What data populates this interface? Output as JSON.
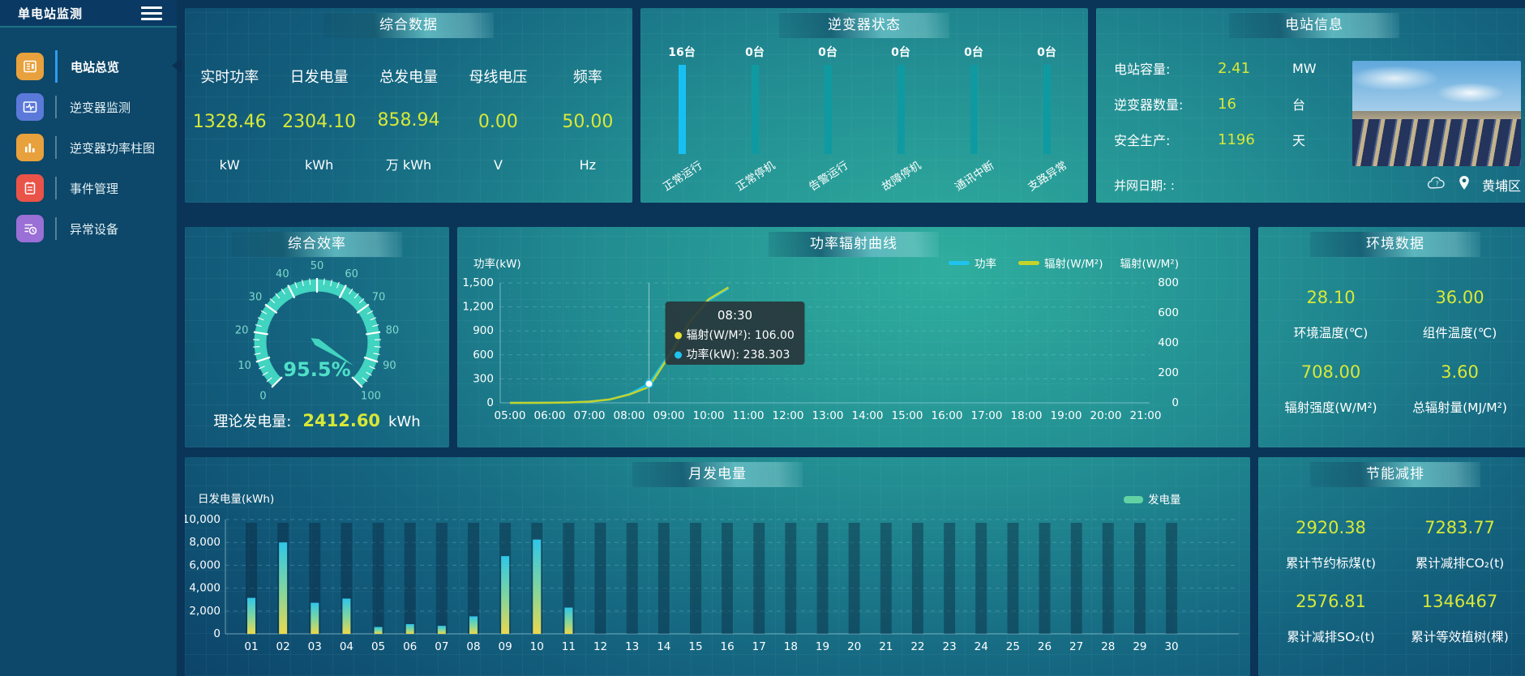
{
  "header": {
    "title": "单电站监测"
  },
  "sidebar": {
    "items": [
      {
        "label": "电站总览",
        "icon": "overview-doc-icon",
        "icon_color": "#e8a13c",
        "active": true
      },
      {
        "label": "逆变器监测",
        "icon": "inverter-monitor-icon",
        "icon_color": "#5b79d9",
        "active": false
      },
      {
        "label": "逆变器功率柱图",
        "icon": "power-bars-icon",
        "icon_color": "#e8a13c",
        "active": false
      },
      {
        "label": "事件管理",
        "icon": "event-notebook-icon",
        "icon_color": "#ea5348",
        "active": false
      },
      {
        "label": "异常设备",
        "icon": "abnormal-device-icon",
        "icon_color": "#9a6fd6",
        "active": false
      }
    ]
  },
  "panels": {
    "overview": {
      "title": "综合数据",
      "metrics": [
        {
          "label": "实时功率",
          "value": "1328.46",
          "unit": "kW"
        },
        {
          "label": "日发电量",
          "value": "2304.10",
          "unit": "kWh"
        },
        {
          "label": "总发电量",
          "value": "858.94",
          "unit": "万 kWh"
        },
        {
          "label": "母线电压",
          "value": "0.00",
          "unit": "V"
        },
        {
          "label": "频率",
          "value": "50.00",
          "unit": "Hz"
        }
      ]
    },
    "inverter_status": {
      "title": "逆变器状态",
      "items": [
        {
          "count": "16台",
          "label": "正常运行",
          "highlight": true
        },
        {
          "count": "0台",
          "label": "正常停机",
          "highlight": false
        },
        {
          "count": "0台",
          "label": "告警运行",
          "highlight": false
        },
        {
          "count": "0台",
          "label": "故障停机",
          "highlight": false
        },
        {
          "count": "0台",
          "label": "通讯中断",
          "highlight": false
        },
        {
          "count": "0台",
          "label": "支路异常",
          "highlight": false
        }
      ]
    },
    "station_info": {
      "title": "电站信息",
      "rows": [
        {
          "label": "电站容量:",
          "value": "2.41",
          "unit": "MW"
        },
        {
          "label": "逆变器数量:",
          "value": "16",
          "unit": "台"
        },
        {
          "label": "安全生产:",
          "value": "1196",
          "unit": "天"
        },
        {
          "label": "并网日期: :",
          "value": "",
          "unit": ""
        }
      ],
      "location": "黄埔区"
    },
    "efficiency": {
      "title": "综合效率",
      "value": 95.5,
      "value_text": "95.5%",
      "min": 0,
      "max": 100,
      "tick_labels": [
        0,
        10,
        20,
        30,
        40,
        50,
        60,
        70,
        80,
        90,
        100
      ],
      "theory": {
        "label": "理论发电量:",
        "value": "2412.60",
        "unit": "kWh"
      }
    },
    "environment": {
      "title": "环境数据",
      "metrics": [
        {
          "value": "28.10",
          "label": "环境温度(℃)"
        },
        {
          "value": "36.00",
          "label": "组件温度(℃)"
        },
        {
          "value": "708.00",
          "label": "辐射强度(W/M²)"
        },
        {
          "value": "3.60",
          "label": "总辐射量(MJ/M²)"
        }
      ]
    },
    "saving": {
      "title": "节能减排",
      "metrics": [
        {
          "value": "2920.38",
          "label": "累计节约标煤(t)"
        },
        {
          "value": "7283.77",
          "label": "累计减排CO₂(t)"
        },
        {
          "value": "2576.81",
          "label": "累计减排SO₂(t)"
        },
        {
          "value": "1346467",
          "label": "累计等效植树(棵)"
        }
      ]
    }
  },
  "chart_data": [
    {
      "type": "line",
      "title": "功率辐射曲线",
      "x_axis_labels": [
        "05:00",
        "06:00",
        "07:00",
        "08:00",
        "09:00",
        "10:00",
        "11:00",
        "12:00",
        "13:00",
        "14:00",
        "15:00",
        "16:00",
        "17:00",
        "18:00",
        "19:00",
        "20:00",
        "21:00"
      ],
      "x": [
        "05:00",
        "05:30",
        "06:00",
        "06:30",
        "07:00",
        "07:30",
        "08:00",
        "08:30",
        "09:00",
        "09:30",
        "10:00",
        "10:30"
      ],
      "series": [
        {
          "name": "功率",
          "color": "#1fc3ee",
          "axis": "left",
          "values": [
            0,
            0,
            2,
            5,
            15,
            40,
            110,
            238.303,
            600,
            1000,
            1280,
            1430
          ]
        },
        {
          "name": "辐射(W/M²)",
          "color": "#c3d32c",
          "axis": "right",
          "values": [
            0,
            0,
            1,
            3,
            8,
            22,
            55,
            106,
            310,
            530,
            690,
            770
          ]
        }
      ],
      "left_axis": {
        "label": "功率(kW)",
        "max": 1500,
        "ticks": [
          "1,500",
          "1,200",
          "900",
          "600",
          "300",
          "0"
        ]
      },
      "right_axis": {
        "label": "辐射(W/M²)",
        "max": 800,
        "ticks": [
          "800",
          "600",
          "400",
          "200",
          "0"
        ]
      },
      "tooltip": {
        "time": "08:30",
        "rows": [
          {
            "color": "#e7e134",
            "text": "辐射(W/M²): 106.00"
          },
          {
            "color": "#1fc3ee",
            "text": "功率(kW): 238.303"
          }
        ]
      },
      "legend_position": "top-right",
      "grid": true
    },
    {
      "type": "bar",
      "title": "月发电量",
      "ylabel": "日发电量(kWh)",
      "legend": "发电量",
      "categories": [
        "01",
        "02",
        "03",
        "04",
        "05",
        "06",
        "07",
        "08",
        "09",
        "10",
        "11",
        "12",
        "13",
        "14",
        "15",
        "16",
        "17",
        "18",
        "19",
        "20",
        "21",
        "22",
        "23",
        "24",
        "25",
        "26",
        "27",
        "28",
        "29",
        "30"
      ],
      "values": [
        3150,
        8000,
        2720,
        3085,
        600,
        850,
        700,
        1530,
        6800,
        8250,
        2300,
        0,
        0,
        0,
        0,
        0,
        0,
        0,
        0,
        0,
        0,
        0,
        0,
        0,
        0,
        0,
        0,
        0,
        0,
        0
      ],
      "ymax": 10000,
      "yticks": [
        "10,000",
        "8,000",
        "6,000",
        "4,000",
        "2,000",
        "0"
      ],
      "grid": true
    }
  ],
  "colors": {
    "value_yellow": "#d8e837",
    "gauge_teal": "#41d4c0",
    "bar_highlight_blue": "#17c0f2",
    "bar_teal": "#0f9aa2",
    "power_line": "#1fc3ee",
    "radiation_line": "#c3d32c",
    "bar_gradient_top": "#2fc6e8",
    "bar_gradient_bottom": "#ead84e"
  }
}
